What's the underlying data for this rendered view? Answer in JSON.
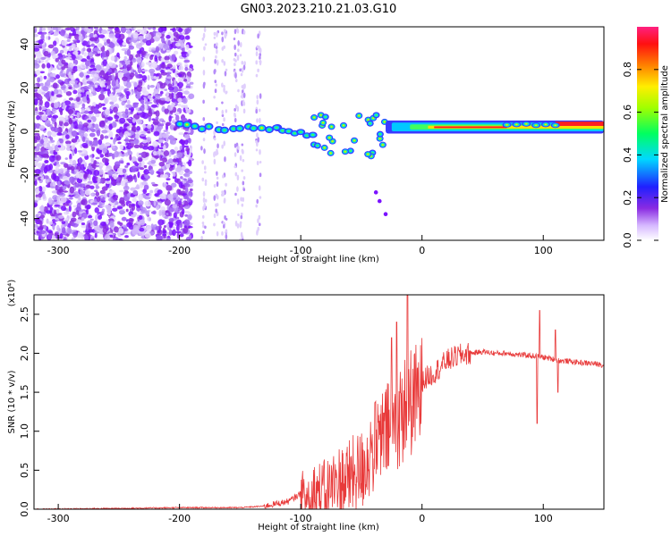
{
  "title": "GN03.2023.210.21.03.G10",
  "chart_data": [
    {
      "type": "heatmap",
      "xlabel": "Height of straight line (km)",
      "ylabel": "Frequency (Hz)",
      "xlim": [
        -320,
        150
      ],
      "ylim": [
        -50,
        48
      ],
      "xticks": [
        -300,
        -200,
        -100,
        0,
        100
      ],
      "yticks": [
        -40,
        -20,
        0,
        20,
        40
      ],
      "colorbar": {
        "label": "Normalized spectral amplitude",
        "range": [
          0.0,
          1.0
        ],
        "ticks": [
          "0.0",
          "0.2",
          "0.4",
          "0.6",
          "0.8"
        ]
      }
    },
    {
      "type": "line",
      "xlabel": "Height of straight line (km)",
      "ylabel": "SNR (10 * v/v)",
      "multiplier": "(x10⁴)",
      "xlim": [
        -320,
        150
      ],
      "ylim": [
        0,
        2.75
      ],
      "xticks": [
        -300,
        -200,
        -100,
        0,
        100
      ],
      "yticks": [
        0.0,
        0.5,
        1.0,
        1.5,
        2.0,
        2.5
      ],
      "line_color": "#e83a3a",
      "x": [
        -320,
        -250,
        -200,
        -150,
        -130,
        -110,
        -100,
        -90,
        -80,
        -70,
        -60,
        -50,
        -40,
        -30,
        -20,
        -15,
        -10,
        -5,
        0,
        10,
        20,
        30,
        40,
        50,
        60,
        70,
        80,
        90,
        95,
        100,
        110,
        115,
        120,
        130,
        140,
        150
      ],
      "values": [
        0.0,
        0.01,
        0.02,
        0.02,
        0.04,
        0.1,
        0.2,
        0.3,
        0.3,
        0.45,
        0.5,
        0.6,
        0.9,
        1.1,
        1.3,
        1.4,
        1.5,
        1.55,
        1.65,
        1.75,
        1.9,
        1.97,
        2.0,
        2.02,
        2.0,
        2.0,
        1.98,
        1.97,
        1.96,
        1.95,
        1.92,
        1.9,
        1.9,
        1.88,
        1.87,
        1.85
      ]
    }
  ]
}
